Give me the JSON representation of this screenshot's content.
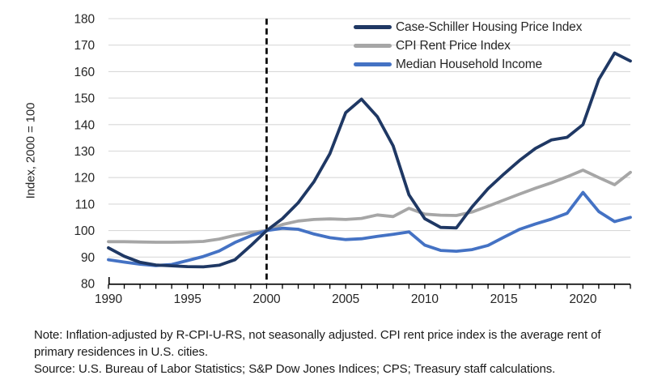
{
  "chart_data": {
    "type": "line",
    "ylabel": "Index, 2000 = 100",
    "ylim": [
      80,
      180
    ],
    "ytick_step": 10,
    "x": [
      1990,
      1991,
      1992,
      1993,
      1994,
      1995,
      1996,
      1997,
      1998,
      1999,
      2000,
      2001,
      2002,
      2003,
      2004,
      2005,
      2006,
      2007,
      2008,
      2009,
      2010,
      2011,
      2012,
      2013,
      2014,
      2015,
      2016,
      2017,
      2018,
      2019,
      2020,
      2021,
      2022,
      2023
    ],
    "xticks_labeled": [
      1990,
      1995,
      2000,
      2005,
      2010,
      2015,
      2020
    ],
    "reference_line_x": 2000,
    "grid": true,
    "legend_position": "top-right",
    "series": [
      {
        "name": "Case-Schiller Housing Price Index",
        "color": "#1F3864",
        "values": [
          93.5,
          90.3,
          88.0,
          87.0,
          86.7,
          86.4,
          86.3,
          86.9,
          89.0,
          94.3,
          100.0,
          104.5,
          110.5,
          118.5,
          129.0,
          144.5,
          149.6,
          143.0,
          132.0,
          113.5,
          104.5,
          101.2,
          101.0,
          109.0,
          115.8,
          121.3,
          126.5,
          131.0,
          134.2,
          135.2,
          140.0,
          157.0,
          167.0,
          164.0
        ]
      },
      {
        "name": "CPI Rent Price Index",
        "color": "#A6A6A6",
        "values": [
          95.8,
          95.8,
          95.7,
          95.6,
          95.6,
          95.7,
          95.9,
          96.8,
          98.2,
          99.3,
          100.0,
          102.3,
          103.6,
          104.2,
          104.4,
          104.2,
          104.6,
          105.9,
          105.3,
          108.4,
          106.2,
          105.8,
          105.7,
          107.0,
          109.2,
          111.5,
          113.8,
          116.0,
          118.0,
          120.3,
          122.8,
          120.0,
          117.3,
          122.0
        ]
      },
      {
        "name": "Median Household Income",
        "color": "#4472C4",
        "values": [
          89.0,
          88.1,
          87.3,
          86.8,
          87.2,
          88.7,
          90.2,
          92.3,
          95.5,
          98.0,
          100.0,
          100.9,
          100.5,
          98.7,
          97.3,
          96.6,
          96.9,
          97.8,
          98.6,
          99.5,
          94.5,
          92.5,
          92.2,
          92.8,
          94.4,
          97.5,
          100.5,
          102.5,
          104.3,
          106.5,
          114.4,
          107.2,
          103.4,
          105.0
        ]
      }
    ]
  },
  "colors": {
    "gridline": "#D9D9D9",
    "axis": "#000000",
    "reference_line": "#000000",
    "tick_text": "#262626"
  },
  "notes": {
    "note": "Note: Inflation-adjusted by R-CPI-U-RS, not seasonally adjusted. CPI rent price index is the average rent of primary residences in U.S. cities.",
    "source": "Source: U.S. Bureau of Labor Statistics; S&P Dow Jones Indices; CPS; Treasury staff calculations."
  }
}
